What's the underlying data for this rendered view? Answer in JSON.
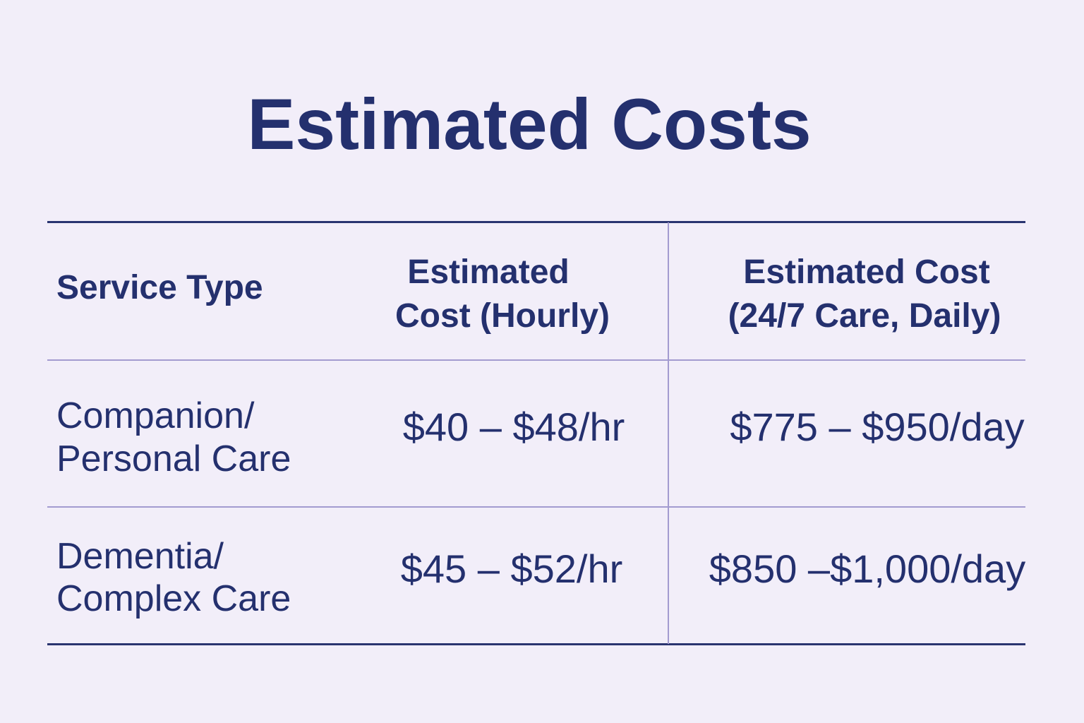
{
  "title": "Estimated Costs",
  "table": {
    "header": [
      [
        "Service Type"
      ],
      [
        "Estimated",
        "Cost (Hourly)"
      ],
      [
        "Estimated Cost",
        "(24/7 Care, Daily)"
      ]
    ],
    "rows": [
      [
        [
          "Companion/",
          "Personal Care"
        ],
        [
          "$40 – $48/hr"
        ],
        [
          "$775 – $950/day"
        ]
      ],
      [
        [
          "Dementia/",
          "Complex Care"
        ],
        [
          "$45 – $52/hr"
        ],
        [
          "$850 –$1,000/day"
        ]
      ]
    ]
  }
}
